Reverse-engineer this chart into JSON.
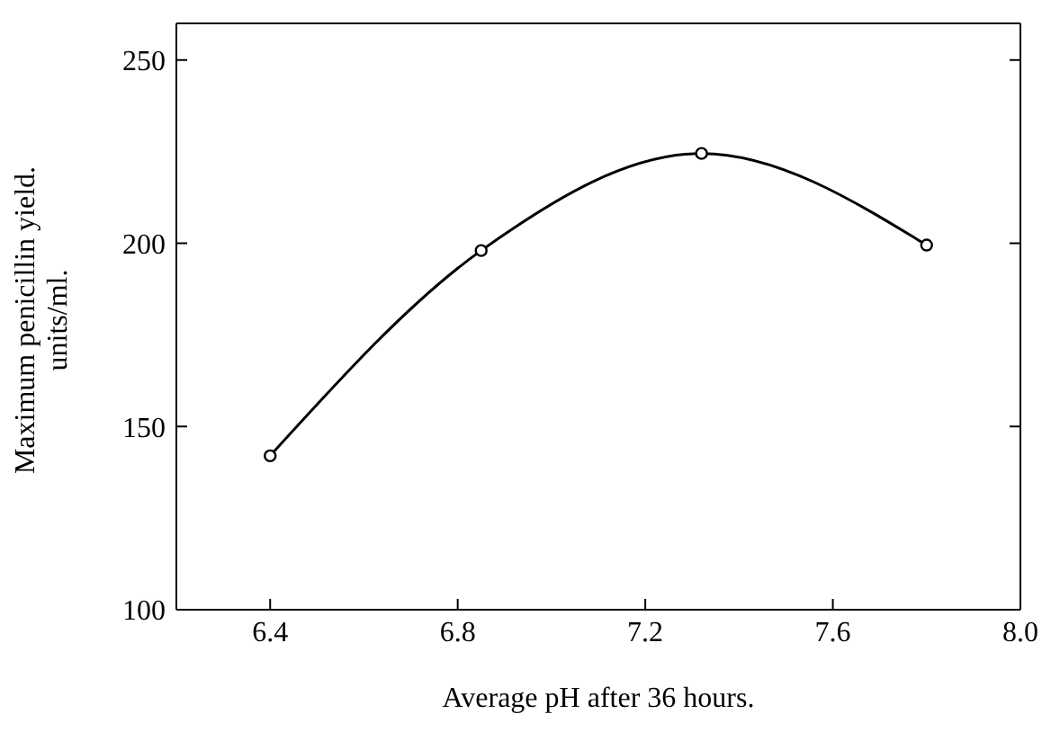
{
  "chart_data": {
    "type": "line",
    "xlabel": "Average pH after 36 hours.",
    "ylabel": "Maximum penicillin yield.\nunits/ml.",
    "x": [
      6.4,
      6.85,
      7.32,
      7.8
    ],
    "series": [
      {
        "color": "#000000",
        "values": [
          142,
          198,
          224.5,
          199.5
        ]
      }
    ],
    "xlim": [
      6.2,
      8.0
    ],
    "xticks": [
      6.4,
      6.8,
      7.2,
      7.6,
      {
        "value": 8,
        "label": "8.0"
      }
    ],
    "ylim": [
      100,
      260
    ],
    "yticks": [
      100,
      150,
      200,
      250
    ],
    "marker": "circle",
    "line_style": "solid",
    "grid": false,
    "legend": false
  }
}
